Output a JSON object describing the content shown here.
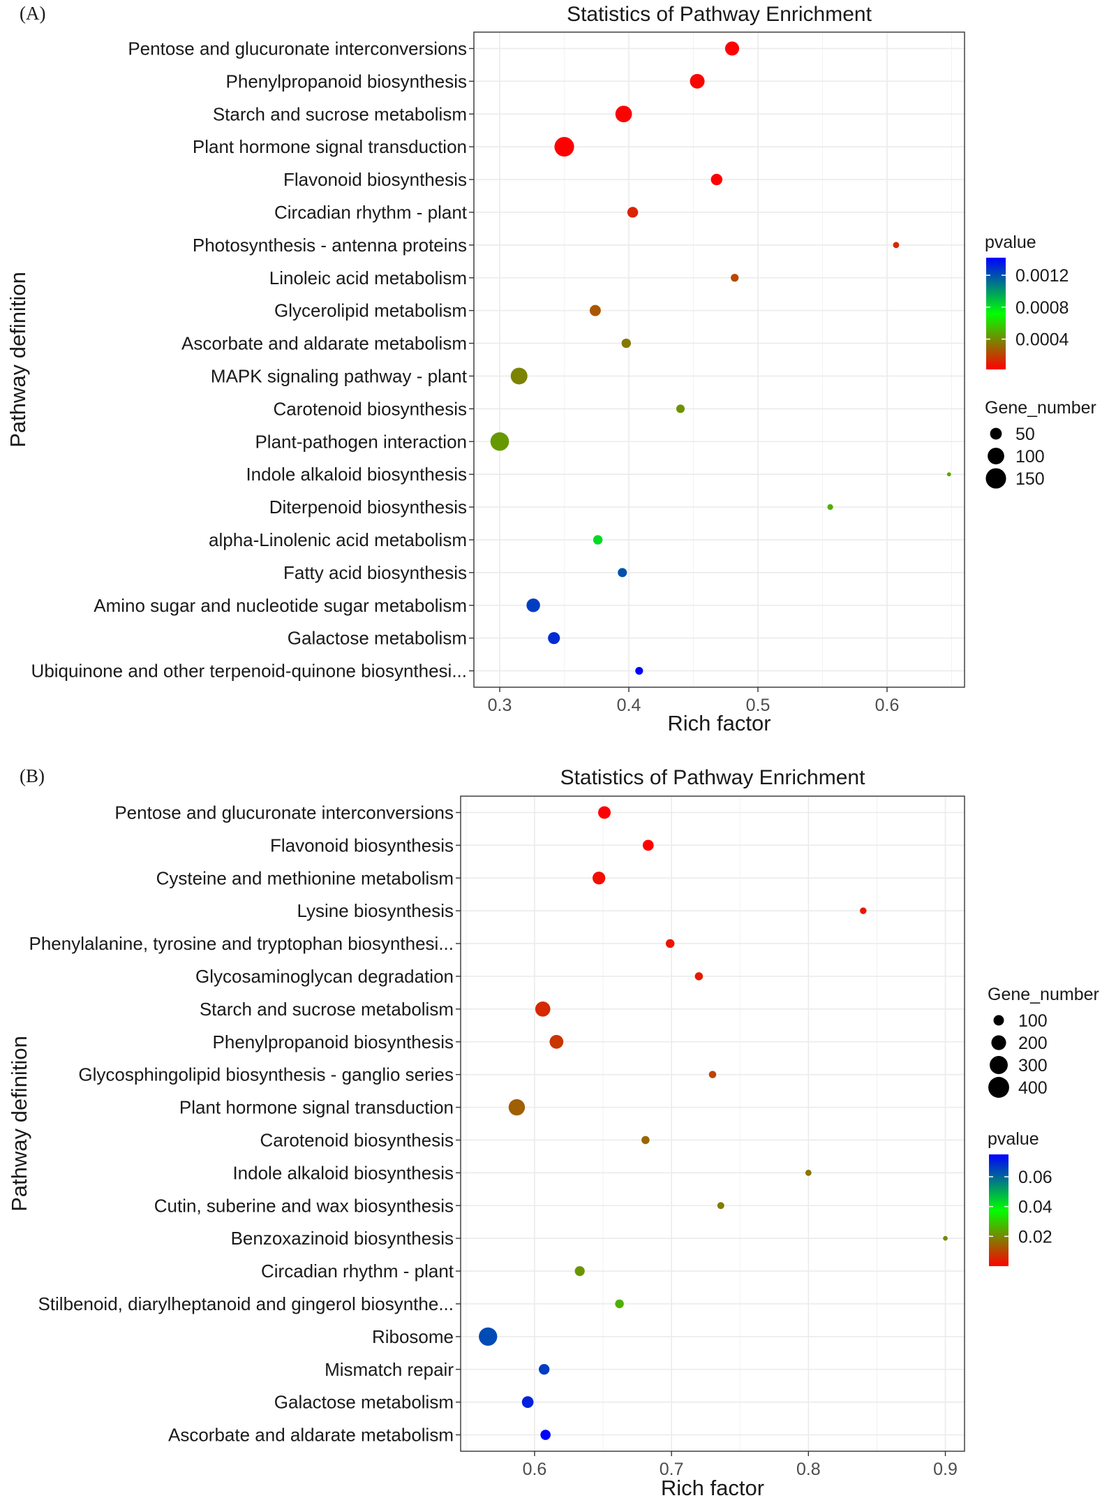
{
  "chart_data": [
    {
      "type": "scatter",
      "panel_label": "(A)",
      "title": "Statistics of Pathway Enrichment",
      "xlabel": "Rich factor",
      "ylabel": "Pathway definition",
      "xlim": [
        0.28,
        0.66
      ],
      "xticks": [
        0.3,
        0.4,
        0.5,
        0.6
      ],
      "xtick_labels": [
        "0.3",
        "0.4",
        "0.5",
        "0.6"
      ],
      "grid": true,
      "legend_order": [
        "pvalue",
        "size"
      ],
      "color_legend": {
        "title": "pvalue",
        "min": 2e-05,
        "max": 0.00142,
        "ticks": [
          0.0004,
          0.0008,
          0.0012
        ],
        "tick_labels": [
          "0.0004",
          "0.0008",
          "0.0012"
        ],
        "gradient": [
          "#ff0000",
          "#00ff00",
          "#0000ff"
        ]
      },
      "size_legend": {
        "title": "Gene_number",
        "values": [
          50,
          100,
          150
        ],
        "labels": [
          "50",
          "100",
          "150"
        ],
        "max_value": 170
      },
      "points": [
        {
          "category": "Pentose and glucuronate interconversions",
          "rich_factor": 0.48,
          "pvalue": 2e-05,
          "gene_number": 72
        },
        {
          "category": "Phenylpropanoid biosynthesis",
          "rich_factor": 0.453,
          "pvalue": 4e-05,
          "gene_number": 78
        },
        {
          "category": "Starch and sucrose metabolism",
          "rich_factor": 0.396,
          "pvalue": 3e-05,
          "gene_number": 100
        },
        {
          "category": "Plant hormone signal transduction",
          "rich_factor": 0.35,
          "pvalue": 2e-05,
          "gene_number": 140
        },
        {
          "category": "Flavonoid biosynthesis",
          "rich_factor": 0.468,
          "pvalue": 2e-05,
          "gene_number": 48
        },
        {
          "category": "Circadian rhythm - plant",
          "rich_factor": 0.403,
          "pvalue": 0.00012,
          "gene_number": 42
        },
        {
          "category": "Photosynthesis - antenna proteins",
          "rich_factor": 0.607,
          "pvalue": 0.00013,
          "gene_number": 14
        },
        {
          "category": "Linoleic acid metabolism",
          "rich_factor": 0.482,
          "pvalue": 0.00022,
          "gene_number": 22
        },
        {
          "category": "Glycerolipid metabolism",
          "rich_factor": 0.374,
          "pvalue": 0.00026,
          "gene_number": 45
        },
        {
          "category": "Ascorbate and aldarate metabolism",
          "rich_factor": 0.398,
          "pvalue": 0.00035,
          "gene_number": 32
        },
        {
          "category": "MAPK signaling pathway - plant",
          "rich_factor": 0.315,
          "pvalue": 0.00038,
          "gene_number": 102
        },
        {
          "category": "Carotenoid biosynthesis",
          "rich_factor": 0.44,
          "pvalue": 0.00042,
          "gene_number": 26
        },
        {
          "category": "Plant-pathogen interaction",
          "rich_factor": 0.3,
          "pvalue": 0.00044,
          "gene_number": 125
        },
        {
          "category": "Indole alkaloid biosynthesis",
          "rich_factor": 0.648,
          "pvalue": 0.00047,
          "gene_number": 6
        },
        {
          "category": "Diterpenoid biosynthesis",
          "rich_factor": 0.556,
          "pvalue": 0.0005,
          "gene_number": 12
        },
        {
          "category": "alpha-Linolenic acid metabolism",
          "rich_factor": 0.376,
          "pvalue": 0.00082,
          "gene_number": 32
        },
        {
          "category": "Fatty acid biosynthesis",
          "rich_factor": 0.395,
          "pvalue": 0.0012,
          "gene_number": 30
        },
        {
          "category": "Amino sugar and nucleotide sugar metabolism",
          "rich_factor": 0.326,
          "pvalue": 0.00125,
          "gene_number": 67
        },
        {
          "category": "Galactose metabolism",
          "rich_factor": 0.342,
          "pvalue": 0.0013,
          "gene_number": 52
        },
        {
          "category": "Ubiquinone and other terpenoid-quinone biosynthesi...",
          "rich_factor": 0.408,
          "pvalue": 0.00142,
          "gene_number": 22
        }
      ]
    },
    {
      "type": "scatter",
      "panel_label": "(B)",
      "title": "Statistics of Pathway Enrichment",
      "xlabel": "Rich factor",
      "ylabel": "Pathway definition",
      "xlim": [
        0.546,
        0.914
      ],
      "xticks": [
        0.6,
        0.7,
        0.8,
        0.9
      ],
      "xtick_labels": [
        "0.6",
        "0.7",
        "0.8",
        "0.9"
      ],
      "grid": true,
      "legend_order": [
        "size",
        "pvalue"
      ],
      "color_legend": {
        "title": "pvalue",
        "min": 0.0,
        "max": 0.075,
        "ticks": [
          0.02,
          0.04,
          0.06
        ],
        "tick_labels": [
          "0.02",
          "0.04",
          "0.06"
        ],
        "gradient": [
          "#ff0000",
          "#00ff00",
          "#0000ff"
        ]
      },
      "size_legend": {
        "title": "Gene_number",
        "values": [
          100,
          200,
          300,
          400
        ],
        "labels": [
          "100",
          "200",
          "300",
          "400"
        ],
        "max_value": 430
      },
      "points": [
        {
          "category": "Pentose and glucuronate interconversions",
          "rich_factor": 0.651,
          "pvalue": 0.0,
          "gene_number": 145
        },
        {
          "category": "Flavonoid biosynthesis",
          "rich_factor": 0.683,
          "pvalue": 0.0,
          "gene_number": 110
        },
        {
          "category": "Cysteine and methionine metabolism",
          "rich_factor": 0.647,
          "pvalue": 0.002,
          "gene_number": 150
        },
        {
          "category": "Lysine biosynthesis",
          "rich_factor": 0.84,
          "pvalue": 0.003,
          "gene_number": 40
        },
        {
          "category": "Phenylalanine, tyrosine and tryptophan biosynthesi...",
          "rich_factor": 0.699,
          "pvalue": 0.003,
          "gene_number": 70
        },
        {
          "category": "Glycosaminoglycan degradation",
          "rich_factor": 0.72,
          "pvalue": 0.004,
          "gene_number": 60
        },
        {
          "category": "Starch and sucrose metabolism",
          "rich_factor": 0.606,
          "pvalue": 0.006,
          "gene_number": 210
        },
        {
          "category": "Phenylpropanoid biosynthesis",
          "rich_factor": 0.616,
          "pvalue": 0.008,
          "gene_number": 175
        },
        {
          "category": "Glycosphingolipid biosynthesis - ganglio series",
          "rich_factor": 0.73,
          "pvalue": 0.01,
          "gene_number": 50
        },
        {
          "category": "Plant hormone signal transduction",
          "rich_factor": 0.587,
          "pvalue": 0.014,
          "gene_number": 245
        },
        {
          "category": "Carotenoid biosynthesis",
          "rich_factor": 0.681,
          "pvalue": 0.015,
          "gene_number": 60
        },
        {
          "category": "Indole alkaloid biosynthesis",
          "rich_factor": 0.8,
          "pvalue": 0.017,
          "gene_number": 35
        },
        {
          "category": "Cutin, suberine and wax biosynthesis",
          "rich_factor": 0.736,
          "pvalue": 0.018,
          "gene_number": 45
        },
        {
          "category": "Benzoxazinoid biosynthesis",
          "rich_factor": 0.9,
          "pvalue": 0.02,
          "gene_number": 20
        },
        {
          "category": "Circadian rhythm - plant",
          "rich_factor": 0.633,
          "pvalue": 0.022,
          "gene_number": 90
        },
        {
          "category": "Stilbenoid, diarylheptanoid and gingerol biosynthe...",
          "rich_factor": 0.662,
          "pvalue": 0.026,
          "gene_number": 70
        },
        {
          "category": "Ribosome",
          "rich_factor": 0.566,
          "pvalue": 0.064,
          "gene_number": 310
        },
        {
          "category": "Mismatch repair",
          "rich_factor": 0.607,
          "pvalue": 0.066,
          "gene_number": 105
        },
        {
          "category": "Galactose metabolism",
          "rich_factor": 0.595,
          "pvalue": 0.07,
          "gene_number": 125
        },
        {
          "category": "Ascorbate and aldarate metabolism",
          "rich_factor": 0.608,
          "pvalue": 0.075,
          "gene_number": 95
        }
      ]
    }
  ]
}
